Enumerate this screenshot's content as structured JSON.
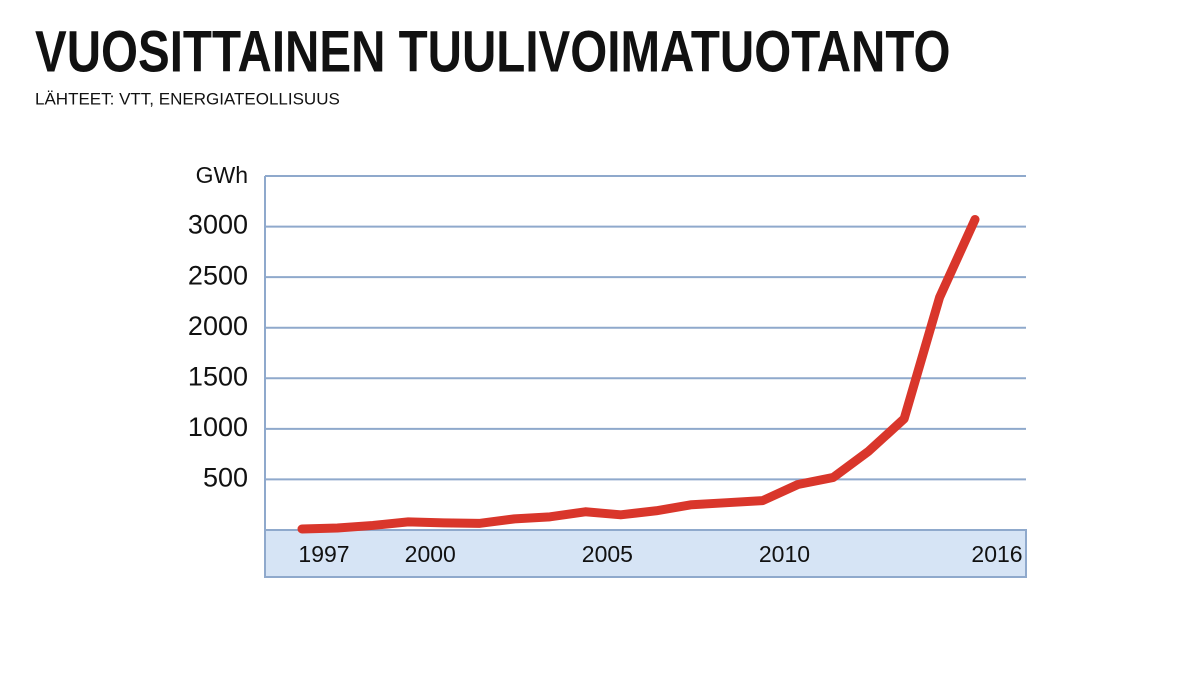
{
  "chart_data": {
    "type": "line",
    "title": "VUOSITTAINEN TUULIVOIMATUOTANTO",
    "subtitle": "LÄHTEET: VTT, ENERGIATEOLLISUUS",
    "y_label": "GWh",
    "x": [
      1997,
      1998,
      1999,
      2000,
      2001,
      2002,
      2003,
      2004,
      2005,
      2006,
      2007,
      2008,
      2009,
      2010,
      2011,
      2012,
      2013,
      2014,
      2015,
      2016
    ],
    "series": [
      {
        "color": "#d9362b",
        "values": [
          10,
          20,
          45,
          80,
          70,
          65,
          110,
          130,
          180,
          150,
          190,
          250,
          270,
          290,
          450,
          520,
          780,
          1100,
          2300,
          3070
        ]
      }
    ],
    "xlim": [
      1997,
      2016
    ],
    "xticks": [
      1997,
      2000,
      2005,
      2010,
      2016
    ],
    "ylim": [
      0,
      3500
    ],
    "yticks": [
      500,
      1000,
      1500,
      2000,
      2500,
      3000
    ],
    "grid": true
  }
}
